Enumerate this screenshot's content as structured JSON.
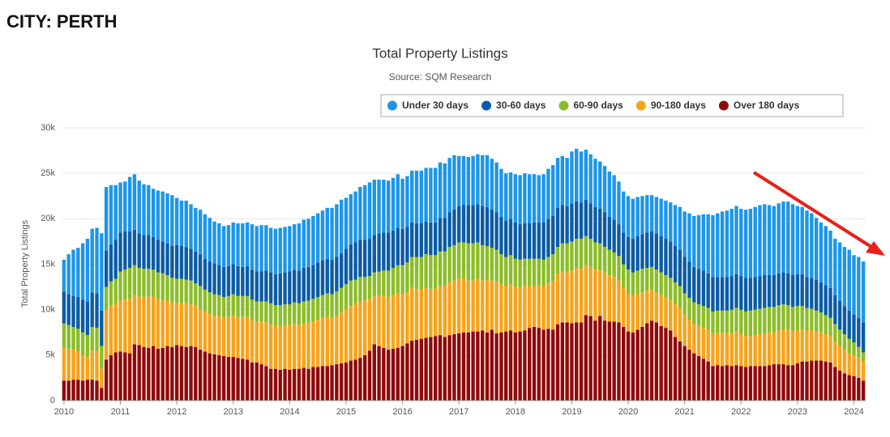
{
  "header": "CITY: PERTH",
  "chart_data": {
    "type": "stacked-bar",
    "title": "Total Property Listings",
    "subtitle": "Source: SQM Research",
    "y_label": "Total Property Listings",
    "categories": [
      "2010",
      null,
      null,
      null,
      null,
      null,
      null,
      null,
      null,
      null,
      null,
      null,
      "2011",
      null,
      null,
      null,
      null,
      null,
      null,
      null,
      null,
      null,
      null,
      null,
      "2012",
      null,
      null,
      null,
      null,
      null,
      null,
      null,
      null,
      null,
      null,
      null,
      "2013",
      null,
      null,
      null,
      null,
      null,
      null,
      null,
      null,
      null,
      null,
      null,
      "2014",
      null,
      null,
      null,
      null,
      null,
      null,
      null,
      null,
      null,
      null,
      null,
      "2015",
      null,
      null,
      null,
      null,
      null,
      null,
      null,
      null,
      null,
      null,
      null,
      "2016",
      null,
      null,
      null,
      null,
      null,
      null,
      null,
      null,
      null,
      null,
      null,
      "2017",
      null,
      null,
      null,
      null,
      null,
      null,
      null,
      null,
      null,
      null,
      null,
      "2018",
      null,
      null,
      null,
      null,
      null,
      null,
      null,
      null,
      null,
      null,
      null,
      "2019",
      null,
      null,
      null,
      null,
      null,
      null,
      null,
      null,
      null,
      null,
      null,
      "2020",
      null,
      null,
      null,
      null,
      null,
      null,
      null,
      null,
      null,
      null,
      null,
      "2021",
      null,
      null,
      null,
      null,
      null,
      null,
      null,
      null,
      null,
      null,
      null,
      "2022",
      null,
      null,
      null,
      null,
      null,
      null,
      null,
      null,
      null,
      null,
      null,
      "2023",
      null,
      null,
      null,
      null,
      null,
      null,
      null,
      null,
      null,
      null,
      null,
      "2024",
      null,
      null
    ],
    "ylim": [
      0,
      30000
    ],
    "yticks": [
      0,
      {
        "value": 5000,
        "label": "5k"
      },
      {
        "value": 10000,
        "label": "10k"
      },
      {
        "value": 15000,
        "label": "15k"
      },
      {
        "value": 20000,
        "label": "20k"
      },
      {
        "value": 25000,
        "label": "25k"
      },
      {
        "value": 30000,
        "label": "30k"
      }
    ],
    "grid": true,
    "legend": "top-right",
    "series": [
      {
        "name": "Under 30 days",
        "color": "#1e96e8",
        "values": [
          3500,
          4400,
          5100,
          5400,
          6200,
          6900,
          7000,
          7200,
          8500,
          7000,
          6500,
          6000,
          5500,
          5500,
          6000,
          6100,
          5800,
          5600,
          5500,
          5300,
          5400,
          5500,
          5500,
          5600,
          5200,
          5000,
          5100,
          4900,
          4800,
          4900,
          4900,
          4800,
          4600,
          4600,
          4500,
          4500,
          4600,
          4700,
          4800,
          4800,
          5000,
          5000,
          5100,
          5000,
          4900,
          5000,
          5000,
          5000,
          5000,
          5000,
          5200,
          5300,
          5300,
          5400,
          5400,
          5500,
          5600,
          5700,
          5800,
          5900,
          5600,
          5500,
          5600,
          5800,
          6000,
          6200,
          6100,
          5900,
          5800,
          5700,
          5800,
          5900,
          5500,
          5600,
          5700,
          5800,
          5800,
          5900,
          6000,
          6000,
          6100,
          6000,
          6000,
          6000,
          5500,
          5400,
          5300,
          5400,
          5500,
          5600,
          5700,
          5600,
          5500,
          5300,
          5200,
          5100,
          5300,
          5400,
          5500,
          5400,
          5300,
          5200,
          5300,
          5500,
          5600,
          5500,
          5400,
          5300,
          5700,
          5800,
          5600,
          5500,
          5400,
          5300,
          5200,
          5100,
          5000,
          4900,
          4700,
          4500,
          4500,
          4400,
          4300,
          4200,
          4100,
          4000,
          4000,
          4100,
          4200,
          4300,
          4500,
          4700,
          5000,
          5300,
          5600,
          5900,
          6200,
          6500,
          6800,
          7000,
          7200,
          7300,
          7400,
          7500,
          7400,
          7500,
          7600,
          7700,
          7800,
          7800,
          7700,
          7600,
          7700,
          7800,
          7900,
          7800,
          7500,
          7400,
          7300,
          7100,
          6800,
          6600,
          6500,
          6300,
          6200,
          6400,
          6500,
          6700,
          6500,
          6700,
          6700
        ]
      },
      {
        "name": "30-60 days",
        "color": "#0b5ca6",
        "values": [
          3500,
          3400,
          3400,
          3500,
          3600,
          3700,
          3800,
          3800,
          3900,
          4000,
          4100,
          4300,
          4300,
          4200,
          4000,
          3900,
          3800,
          3700,
          3700,
          3600,
          3600,
          3500,
          3500,
          3500,
          3700,
          3600,
          3600,
          3500,
          3500,
          3500,
          3400,
          3400,
          3400,
          3300,
          3300,
          3300,
          3300,
          3300,
          3200,
          3300,
          3300,
          3300,
          3300,
          3400,
          3400,
          3400,
          3500,
          3500,
          3600,
          3600,
          3600,
          3700,
          3700,
          3700,
          3800,
          3800,
          3800,
          3800,
          3800,
          3800,
          3900,
          4000,
          4100,
          4100,
          4100,
          4100,
          4100,
          4200,
          4200,
          4200,
          4100,
          4100,
          4000,
          3900,
          3800,
          3700,
          3700,
          3600,
          3600,
          3600,
          3700,
          3700,
          3800,
          3900,
          4000,
          4100,
          4200,
          4200,
          4200,
          4300,
          4300,
          4200,
          4100,
          4100,
          4000,
          4000,
          4000,
          3900,
          3900,
          3900,
          4000,
          4000,
          4100,
          4200,
          4200,
          4300,
          4200,
          4100,
          4200,
          4100,
          4000,
          4000,
          3900,
          3900,
          3800,
          3800,
          3600,
          3600,
          3500,
          3500,
          3600,
          3700,
          3800,
          3800,
          3900,
          3900,
          4000,
          4000,
          4000,
          4000,
          4000,
          4000,
          4000,
          4000,
          3900,
          3900,
          3900,
          3800,
          3800,
          3700,
          3700,
          3700,
          3700,
          3700,
          3700,
          3700,
          3600,
          3600,
          3600,
          3600,
          3500,
          3500,
          3500,
          3500,
          3500,
          3500,
          3500,
          3500,
          3400,
          3400,
          3400,
          3300,
          3300,
          3300,
          3200,
          3200,
          3100,
          3100,
          3100,
          3200,
          3300
        ]
      },
      {
        "name": "60-90 days",
        "color": "#8cbd2a",
        "values": [
          2700,
          2600,
          2500,
          2500,
          2500,
          2400,
          2600,
          2600,
          2500,
          2500,
          2600,
          2800,
          3200,
          3300,
          3400,
          3300,
          3200,
          3100,
          3000,
          3000,
          2900,
          2900,
          2800,
          2700,
          2700,
          2700,
          2600,
          2600,
          2500,
          2500,
          2400,
          2400,
          2400,
          2300,
          2300,
          2300,
          2400,
          2400,
          2300,
          2300,
          2300,
          2200,
          2200,
          2300,
          2300,
          2300,
          2300,
          2300,
          2300,
          2300,
          2400,
          2400,
          2400,
          2500,
          2500,
          2500,
          2600,
          2600,
          2700,
          2700,
          2800,
          2800,
          2700,
          2700,
          2600,
          2600,
          2600,
          2700,
          2800,
          2900,
          3000,
          3100,
          3200,
          3300,
          3400,
          3500,
          3600,
          3700,
          3700,
          3700,
          3800,
          3800,
          3900,
          3900,
          4000,
          4000,
          4100,
          4100,
          4000,
          3900,
          3700,
          3600,
          3500,
          3300,
          3200,
          3200,
          3100,
          3100,
          3000,
          3000,
          3000,
          2900,
          2900,
          2900,
          3000,
          3000,
          3100,
          3200,
          3200,
          3200,
          3300,
          3200,
          3100,
          3000,
          3000,
          2900,
          2800,
          2700,
          2700,
          2600,
          2600,
          2600,
          2600,
          2600,
          2500,
          2500,
          2500,
          2500,
          2500,
          2400,
          2400,
          2400,
          2400,
          2400,
          2400,
          2400,
          2400,
          2400,
          2400,
          2500,
          2500,
          2500,
          2600,
          2600,
          2700,
          2700,
          2800,
          2800,
          2800,
          2800,
          2800,
          2800,
          2800,
          2800,
          2700,
          2700,
          2700,
          2600,
          2500,
          2400,
          2300,
          2200,
          2100,
          2000,
          1900,
          1800,
          1700,
          1600,
          1400,
          1200,
          1000
        ]
      },
      {
        "name": "90-180 days",
        "color": "#f6a41c",
        "values": [
          3600,
          3500,
          3300,
          3100,
          2800,
          2500,
          3200,
          3200,
          2100,
          5500,
          5500,
          5300,
          5600,
          5800,
          6000,
          5400,
          5300,
          5500,
          5700,
          5400,
          5500,
          5300,
          5000,
          4900,
          4600,
          4700,
          4800,
          4600,
          4500,
          4500,
          4400,
          4300,
          4200,
          4300,
          4200,
          4400,
          4500,
          4400,
          4600,
          4700,
          4600,
          4500,
          4700,
          4800,
          4900,
          4700,
          4800,
          4800,
          4900,
          5000,
          4800,
          4900,
          5100,
          5000,
          5200,
          5300,
          5400,
          5200,
          5300,
          5600,
          5800,
          6000,
          6100,
          6200,
          6000,
          5600,
          5300,
          5500,
          5700,
          5800,
          5900,
          6000,
          5700,
          5600,
          5800,
          5600,
          5400,
          5500,
          5300,
          5200,
          5400,
          5600,
          5800,
          5900,
          6000,
          5900,
          5700,
          5600,
          5800,
          5500,
          5800,
          5400,
          5700,
          5300,
          5000,
          5100,
          5000,
          4800,
          4900,
          4600,
          4500,
          4700,
          4800,
          5000,
          5300,
          5500,
          5600,
          5500,
          5800,
          6000,
          5900,
          5500,
          5400,
          5600,
          5000,
          5200,
          5100,
          4900,
          4600,
          4300,
          4200,
          4000,
          3900,
          3800,
          3600,
          3400,
          3300,
          3400,
          3300,
          3400,
          3600,
          3700,
          3400,
          3300,
          3200,
          3300,
          3400,
          3500,
          3600,
          3500,
          3600,
          3500,
          3600,
          3700,
          3500,
          3400,
          3300,
          3400,
          3500,
          3600,
          3600,
          3500,
          3700,
          3800,
          3900,
          3700,
          3600,
          3500,
          3400,
          3300,
          3200,
          3100,
          3000,
          2900,
          2800,
          2700,
          2600,
          2400,
          2300,
          2200,
          2100
        ]
      },
      {
        "name": "Over 180 days",
        "color": "#8e0a0a",
        "values": [
          2200,
          2200,
          2300,
          2300,
          2200,
          2300,
          2300,
          2200,
          1400,
          4500,
          5000,
          5300,
          5400,
          5300,
          5200,
          6200,
          6100,
          5900,
          5800,
          6000,
          5700,
          5800,
          6000,
          5900,
          6100,
          6000,
          5900,
          6000,
          5900,
          5600,
          5400,
          5200,
          5100,
          5000,
          4900,
          4800,
          4800,
          4700,
          4600,
          4500,
          4200,
          4200,
          4000,
          3800,
          3500,
          3500,
          3400,
          3500,
          3400,
          3500,
          3500,
          3600,
          3500,
          3700,
          3700,
          3800,
          3800,
          3900,
          4000,
          4100,
          4200,
          4400,
          4500,
          4700,
          5000,
          5500,
          6200,
          6000,
          5800,
          5600,
          5700,
          5800,
          6000,
          6300,
          6600,
          6700,
          6800,
          6900,
          7000,
          7100,
          7200,
          7000,
          7200,
          7300,
          7400,
          7500,
          7500,
          7600,
          7600,
          7700,
          7500,
          7800,
          7400,
          7500,
          7600,
          7700,
          7500,
          7600,
          7700,
          8000,
          8100,
          8000,
          7800,
          7900,
          7800,
          8400,
          8600,
          8600,
          8500,
          8600,
          8600,
          9400,
          9300,
          8800,
          9300,
          8800,
          8700,
          8700,
          8600,
          8100,
          7600,
          7500,
          7800,
          8100,
          8500,
          8800,
          8600,
          8200,
          8000,
          7700,
          7000,
          6500,
          6000,
          5600,
          5200,
          4900,
          4600,
          4300,
          3800,
          3900,
          3800,
          3900,
          3800,
          3900,
          3800,
          3700,
          3800,
          3800,
          3800,
          3800,
          3900,
          4000,
          4000,
          4000,
          3900,
          3900,
          4100,
          4300,
          4300,
          4400,
          4400,
          4400,
          4300,
          4200,
          3700,
          3300,
          3000,
          2800,
          2700,
          2500,
          2200
        ]
      }
    ]
  }
}
